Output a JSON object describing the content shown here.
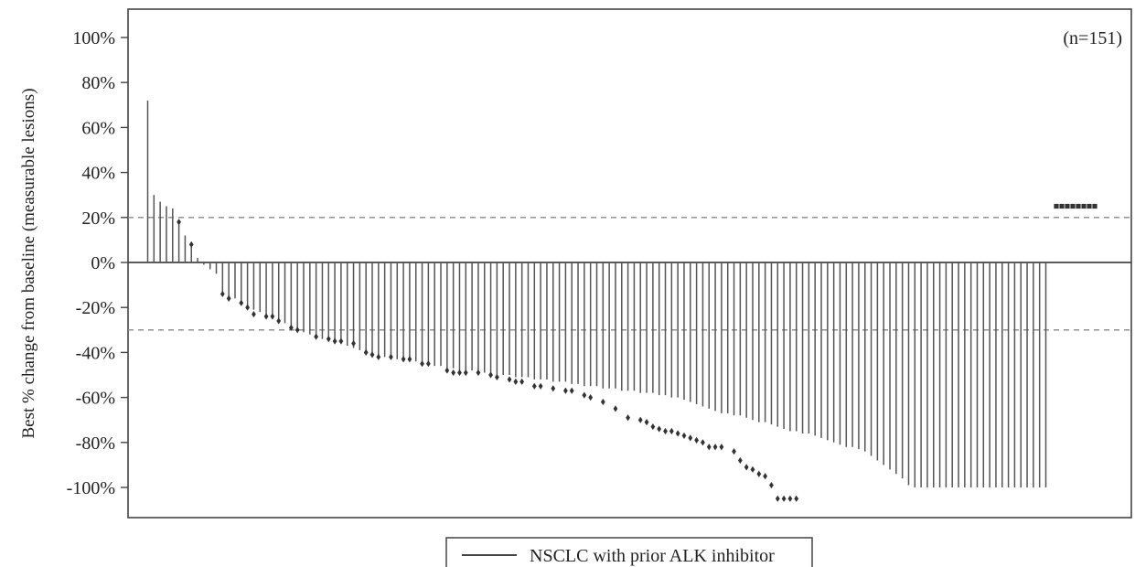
{
  "chart_data": {
    "type": "waterfall",
    "ylabel": "Best % change from baseline (measurable lesions)",
    "annotation": "(n=151)",
    "ylim": [
      -115,
      112
    ],
    "yticks": [
      100,
      80,
      60,
      40,
      20,
      0,
      -20,
      -40,
      -60,
      -80,
      -100
    ],
    "ytick_labels": [
      "100%",
      "80%",
      "60%",
      "40%",
      "20%",
      "0%",
      "-20%",
      "-40%",
      "-60%",
      "-80%",
      "-100%"
    ],
    "reference_lines": [
      20,
      -30
    ],
    "legend": [
      {
        "label": "NSCLC with prior ALK inhibitor",
        "color": "#444444"
      }
    ],
    "patients_with_bars": 143,
    "patients_without_measurement": 8,
    "no_measurement_marker_value": 25,
    "values": [
      72,
      30,
      27,
      25,
      24,
      17,
      12,
      7,
      2,
      -1,
      -3,
      -5,
      -14,
      -15,
      -16,
      -18,
      -20,
      -21,
      -22,
      -23,
      -24,
      -25,
      -27,
      -29,
      -30,
      -31,
      -32,
      -33,
      -34,
      -35,
      -35,
      -36,
      -37,
      -38,
      -39,
      -40,
      -41,
      -41,
      -42,
      -42,
      -43,
      -43,
      -44,
      -44,
      -45,
      -45,
      -46,
      -46,
      -47,
      -47,
      -48,
      -48,
      -48,
      -49,
      -49,
      -49,
      -50,
      -50,
      -50,
      -51,
      -51,
      -51,
      -52,
      -52,
      -52,
      -53,
      -53,
      -53,
      -54,
      -54,
      -55,
      -55,
      -55,
      -56,
      -56,
      -56,
      -57,
      -57,
      -57,
      -58,
      -58,
      -58,
      -59,
      -59,
      -60,
      -60,
      -61,
      -62,
      -63,
      -64,
      -65,
      -66,
      -67,
      -67,
      -68,
      -68,
      -69,
      -70,
      -71,
      -71,
      -72,
      -73,
      -74,
      -75,
      -75,
      -76,
      -76,
      -77,
      -78,
      -79,
      -80,
      -81,
      -82,
      -82,
      -83,
      -84,
      -86,
      -88,
      -90,
      -92,
      -94,
      -96,
      -99,
      -100,
      -100,
      -100,
      -100,
      -100,
      -100,
      -100,
      -100,
      -100,
      -100,
      -100,
      -100,
      -100,
      -100,
      -100,
      -100,
      -100,
      -100,
      -100,
      -100,
      -100,
      -100
    ],
    "markers": [
      null,
      null,
      null,
      null,
      null,
      18,
      null,
      8,
      null,
      null,
      null,
      null,
      -14,
      -16,
      null,
      -18,
      -20,
      -23,
      null,
      -24,
      -24,
      -26,
      null,
      -29,
      -30,
      null,
      null,
      -33,
      null,
      -34,
      -35,
      -35,
      null,
      -36,
      null,
      -40,
      -41,
      -42,
      null,
      -42,
      null,
      -43,
      -43,
      null,
      -45,
      -45,
      null,
      null,
      -48,
      -49,
      -49,
      -49,
      null,
      -49,
      null,
      -50,
      -51,
      null,
      -52,
      -53,
      -53,
      null,
      -55,
      -55,
      null,
      -56,
      null,
      -57,
      -57,
      null,
      -59,
      -60,
      null,
      -62,
      null,
      -65,
      null,
      -69,
      null,
      -70,
      -71,
      -73,
      -74,
      -75,
      -75,
      -76,
      -77,
      -78,
      -79,
      -80,
      -82,
      -82,
      -82,
      null,
      -84,
      -88,
      -91,
      -92,
      -94,
      -95,
      -99,
      -105,
      -105,
      -105,
      -105
    ]
  },
  "legend_label": "NSCLC with prior ALK inhibitor"
}
